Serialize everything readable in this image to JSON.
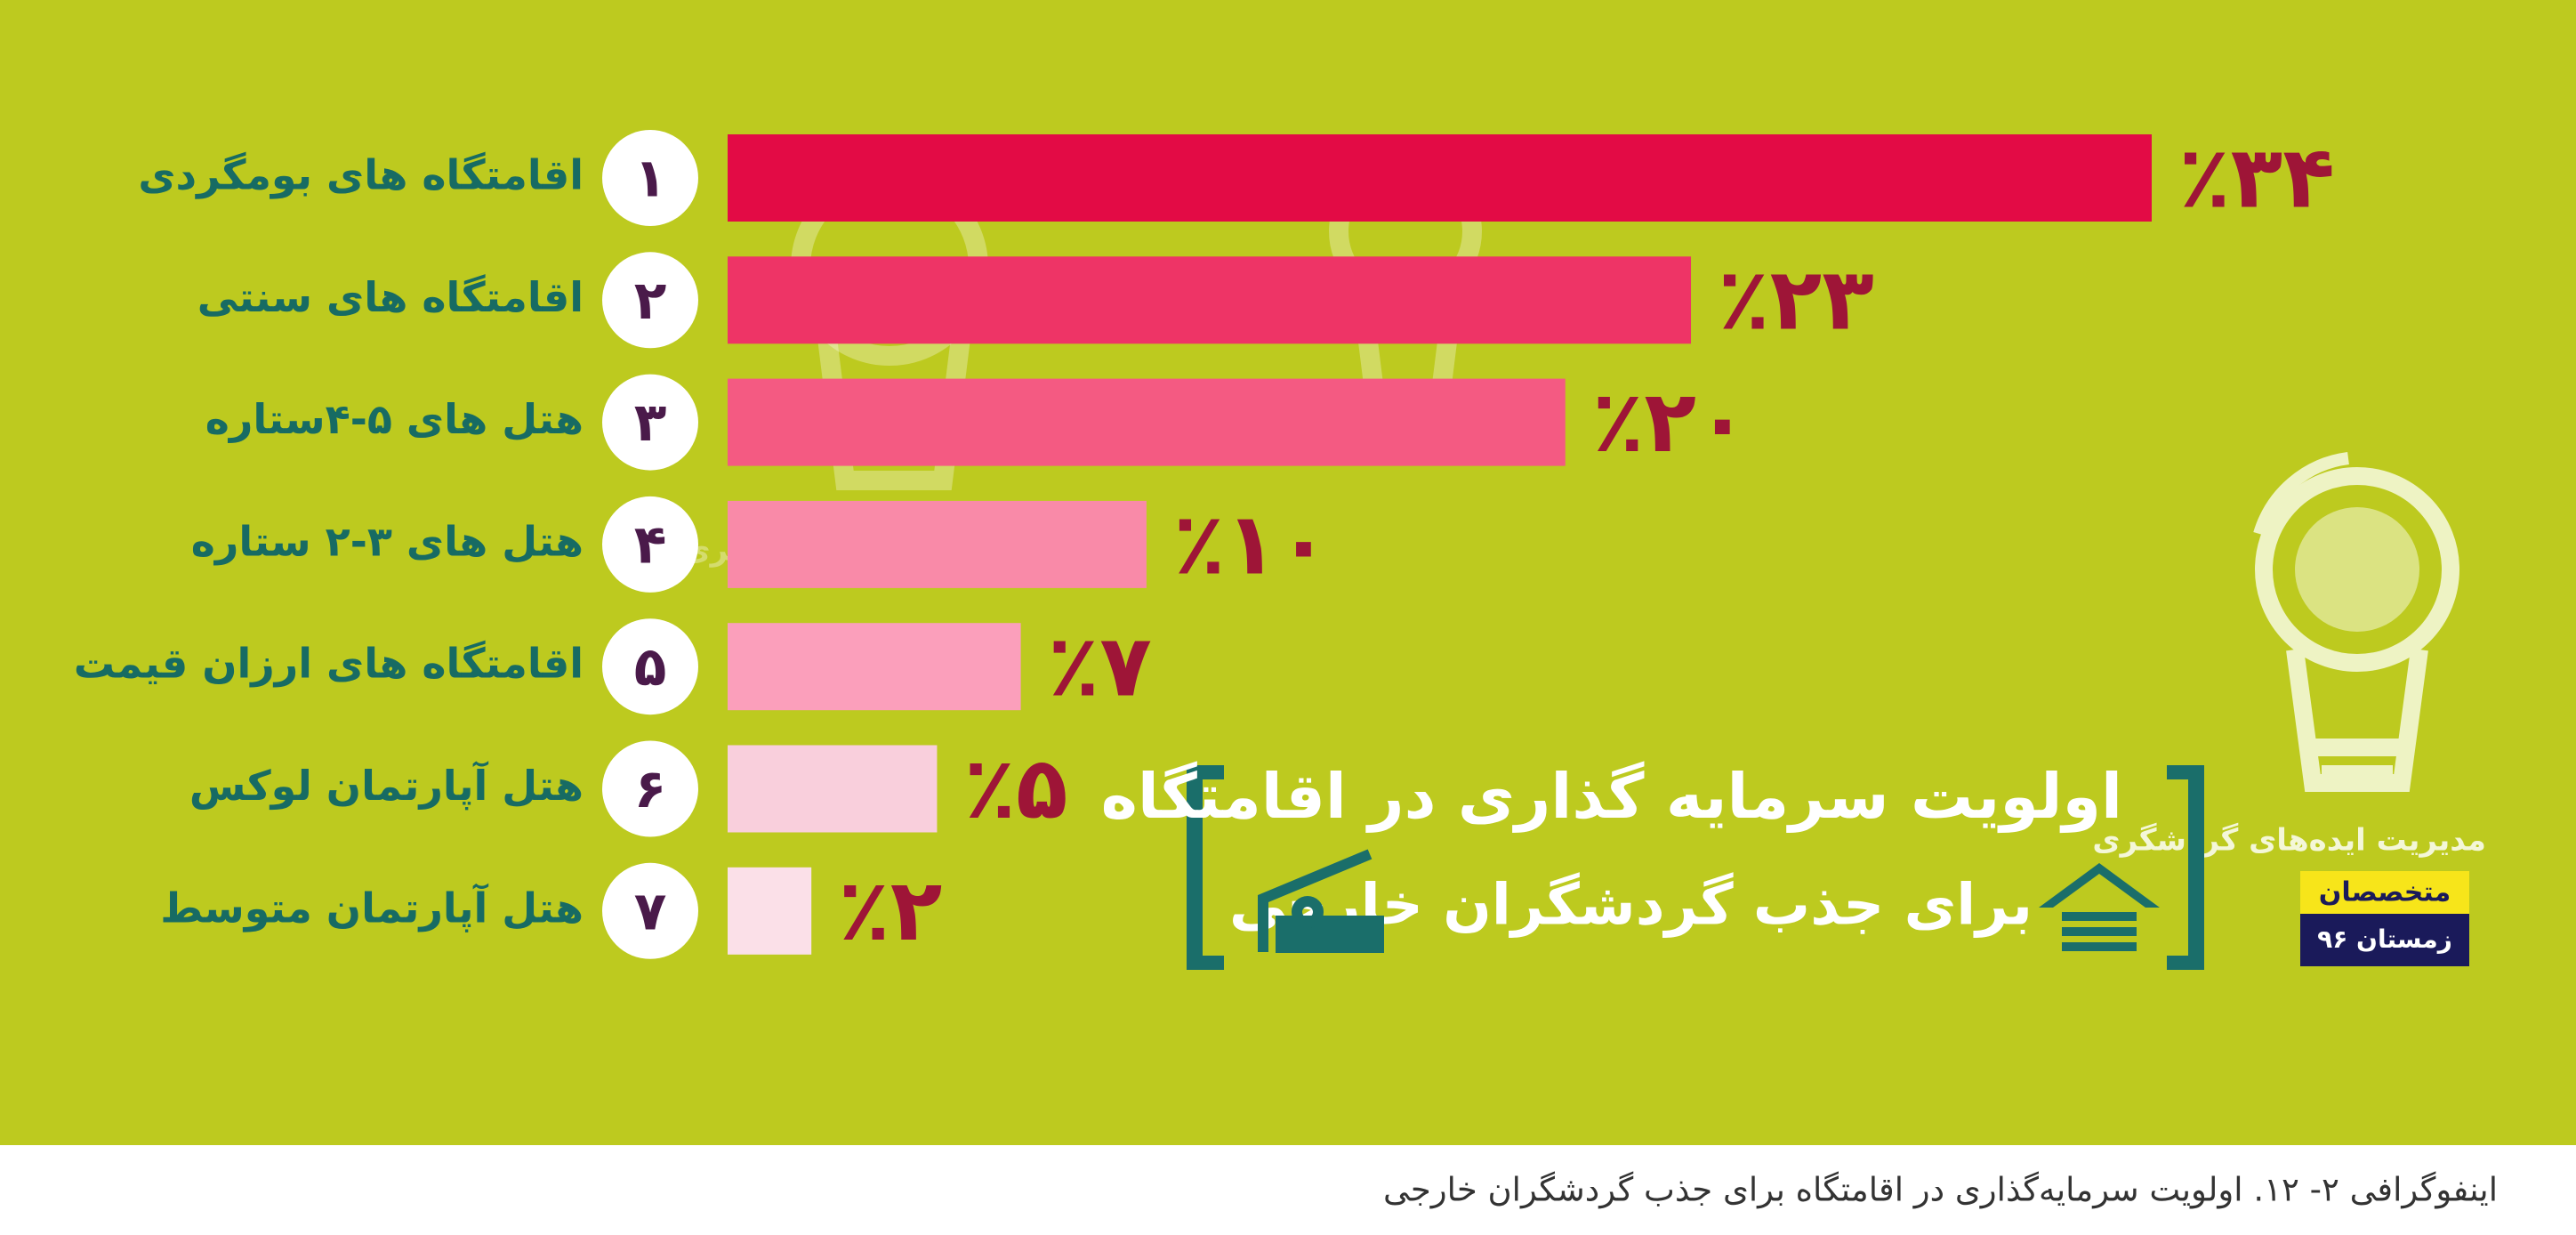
{
  "chart_data": {
    "type": "bar",
    "orientation": "horizontal",
    "title": "اولویت سرمایه گذاری در اقامتگاه",
    "subtitle": "برای جذب گردشگران خارجی",
    "categories": [
      "اقامتگاه های بومگردی",
      "اقامتگاه های سنتی",
      "هتل های ۵-۴ستاره",
      "هتل های ۳-۲ ستاره",
      "اقامتگاه های  ارزان قیمت",
      "هتل آپارتمان لوکس",
      "هتل آپارتمان متوسط"
    ],
    "ranks": [
      "۱",
      "۲",
      "۳",
      "۴",
      "۵",
      "۶",
      "۷"
    ],
    "values": [
      34,
      23,
      20,
      10,
      7,
      5,
      2
    ],
    "value_labels": [
      "٪۳۴",
      "٪۲۳",
      "٪۲۰",
      "٪۱۰",
      "٪۷",
      "٪۵",
      "٪۲"
    ],
    "colors": [
      "#e30b45",
      "#ee3466",
      "#f45a82",
      "#f98aa8",
      "#fb9fbb",
      "#f9cfdc",
      "#fbe0e8"
    ],
    "background": "#bdca1f",
    "label_color": "#9e1537"
  },
  "watermark": "مدیریت ایده‌های گردشگری",
  "badge": {
    "top": "متخصصان",
    "bottom": "زمستان ۹۶"
  },
  "caption": "اینفوگرافی ۲- ۱۲. اولویت سرمایه‌گذاری در اقامتگاه برای جذب گردشگران خارجی"
}
